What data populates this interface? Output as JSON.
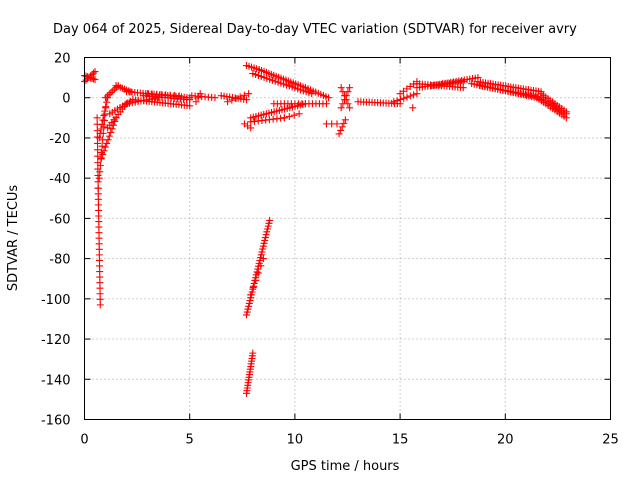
{
  "chart_data": {
    "type": "scatter",
    "title": "Day 064 of 2025, Sidereal Day-to-day VTEC variation (SDTVAR) for receiver avry",
    "xlabel": "GPS time / hours",
    "ylabel": "SDTVAR / TECUs",
    "xlim": [
      0,
      25
    ],
    "ylim": [
      -160,
      20
    ],
    "xticks": [
      "0",
      "5",
      "10",
      "15",
      "20",
      "25"
    ],
    "yticks": [
      "20",
      "0",
      "-20",
      "-40",
      "-60",
      "-80",
      "-100",
      "-120",
      "-140",
      "-160"
    ],
    "grid": true,
    "marker": "+",
    "color": "#ff0000",
    "series": [
      {
        "name": "SDTVAR",
        "segments": [
          {
            "x0": 0.0,
            "x1": 0.5,
            "y0": 11,
            "y1": 9,
            "n": 8
          },
          {
            "x0": 0.0,
            "x1": 0.5,
            "y0": 8,
            "y1": 13,
            "n": 8
          },
          {
            "x0": 0.6,
            "x1": 0.65,
            "y0": -10,
            "y1": -45,
            "n": 12
          },
          {
            "x0": 0.65,
            "x1": 0.75,
            "y0": -45,
            "y1": -103,
            "n": 22
          },
          {
            "x0": 0.7,
            "x1": 1.0,
            "y0": -40,
            "y1": -5,
            "n": 12
          },
          {
            "x0": 0.7,
            "x1": 1.1,
            "y0": -20,
            "y1": 0,
            "n": 10
          },
          {
            "x0": 0.8,
            "x1": 1.5,
            "y0": -30,
            "y1": -10,
            "n": 12
          },
          {
            "x0": 1.0,
            "x1": 1.6,
            "y0": 0,
            "y1": 6,
            "n": 8
          },
          {
            "x0": 1.5,
            "x1": 2.2,
            "y0": 6,
            "y1": 3,
            "n": 8
          },
          {
            "x0": 1.1,
            "x1": 2.0,
            "y0": -15,
            "y1": -3,
            "n": 10
          },
          {
            "x0": 2.0,
            "x1": 3.5,
            "y0": -3,
            "y1": 0,
            "n": 12
          },
          {
            "x0": 1.2,
            "x1": 2.3,
            "y0": -8,
            "y1": -1,
            "n": 10
          },
          {
            "x0": 2.0,
            "x1": 5.0,
            "y0": 3,
            "y1": 0,
            "n": 24
          },
          {
            "x0": 2.3,
            "x1": 5.0,
            "y0": -1,
            "y1": -4,
            "n": 22
          },
          {
            "x0": 2.8,
            "x1": 5.0,
            "y0": 1,
            "y1": -1,
            "n": 16
          },
          {
            "x0": 3.0,
            "x1": 4.5,
            "y0": 2,
            "y1": 1,
            "n": 8
          },
          {
            "x0": 5.1,
            "x1": 6.2,
            "y0": 1,
            "y1": 0,
            "n": 8
          },
          {
            "x0": 5.3,
            "x1": 5.5,
            "y0": -2,
            "y1": 2,
            "n": 3
          },
          {
            "x0": 6.5,
            "x1": 7.7,
            "y0": 1,
            "y1": -1,
            "n": 10
          },
          {
            "x0": 6.8,
            "x1": 7.8,
            "y0": -2,
            "y1": 2,
            "n": 6
          },
          {
            "x0": 7.6,
            "x1": 7.9,
            "y0": -13,
            "y1": -15,
            "n": 3
          },
          {
            "x0": 7.7,
            "x1": 8.8,
            "y0": -108,
            "y1": -61,
            "n": 34
          },
          {
            "x0": 7.9,
            "x1": 8.5,
            "y0": -98,
            "y1": -80,
            "n": 6
          },
          {
            "x0": 7.7,
            "x1": 8.0,
            "y0": -147,
            "y1": -127,
            "n": 16
          },
          {
            "x0": 7.7,
            "x1": 8.3,
            "y0": 16,
            "y1": 14,
            "n": 6
          },
          {
            "x0": 8.3,
            "x1": 10.5,
            "y0": 14,
            "y1": 5,
            "n": 20
          },
          {
            "x0": 8.0,
            "x1": 10.8,
            "y0": 12,
            "y1": 2,
            "n": 22
          },
          {
            "x0": 10.5,
            "x1": 11.6,
            "y0": 5,
            "y1": 0,
            "n": 10
          },
          {
            "x0": 7.9,
            "x1": 10.5,
            "y0": -10,
            "y1": -3,
            "n": 22
          },
          {
            "x0": 7.9,
            "x1": 9.5,
            "y0": -12,
            "y1": -10,
            "n": 10
          },
          {
            "x0": 9.5,
            "x1": 10.2,
            "y0": -10,
            "y1": -8,
            "n": 4
          },
          {
            "x0": 9.0,
            "x1": 11.5,
            "y0": -3,
            "y1": -3,
            "n": 16
          },
          {
            "x0": 11.5,
            "x1": 12.0,
            "y0": -13,
            "y1": -13,
            "n": 3
          },
          {
            "x0": 12.2,
            "x1": 12.6,
            "y0": 5,
            "y1": -5,
            "n": 6
          },
          {
            "x0": 12.2,
            "x1": 12.6,
            "y0": -5,
            "y1": 5,
            "n": 6
          },
          {
            "x0": 12.1,
            "x1": 12.4,
            "y0": -18,
            "y1": -11,
            "n": 5
          },
          {
            "x0": 13.0,
            "x1": 15.0,
            "y0": -2,
            "y1": -3,
            "n": 16
          },
          {
            "x0": 14.7,
            "x1": 15.8,
            "y0": -2,
            "y1": 2,
            "n": 8
          },
          {
            "x0": 15.0,
            "x1": 15.8,
            "y0": 2,
            "y1": 8,
            "n": 6
          },
          {
            "x0": 15.6,
            "x1": 15.6,
            "y0": -5,
            "y1": -5,
            "n": 1
          },
          {
            "x0": 15.8,
            "x1": 18.0,
            "y0": 5,
            "y1": 8,
            "n": 18
          },
          {
            "x0": 15.8,
            "x1": 18.0,
            "y0": 7,
            "y1": 5,
            "n": 18
          },
          {
            "x0": 16.5,
            "x1": 18.7,
            "y0": 6,
            "y1": 10,
            "n": 18
          },
          {
            "x0": 18.4,
            "x1": 21.5,
            "y0": 7,
            "y1": 0,
            "n": 26
          },
          {
            "x0": 18.7,
            "x1": 21.7,
            "y0": 8,
            "y1": 3,
            "n": 26
          },
          {
            "x0": 18.8,
            "x1": 21.8,
            "y0": 6,
            "y1": 0,
            "n": 26
          },
          {
            "x0": 21.5,
            "x1": 22.9,
            "y0": 0,
            "y1": -10,
            "n": 14
          },
          {
            "x0": 21.7,
            "x1": 22.9,
            "y0": 2,
            "y1": -7,
            "n": 12
          },
          {
            "x0": 21.8,
            "x1": 22.9,
            "y0": -1,
            "y1": -8,
            "n": 10
          }
        ]
      }
    ]
  }
}
